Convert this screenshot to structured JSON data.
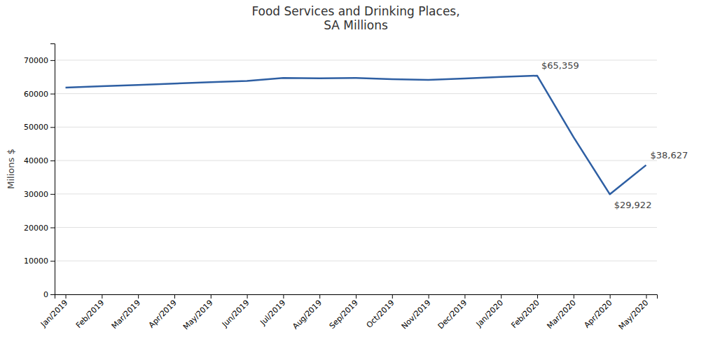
{
  "chart_data": {
    "type": "line",
    "title": "Food Services and Drinking Places,\nSA Millions",
    "ylabel": "Milions $",
    "color": "#2e5fa3",
    "categories": [
      "Jan/2019",
      "Feb/2019",
      "Mar/2019",
      "Apr/2019",
      "May/2019",
      "Jun/2019",
      "Jul/2019",
      "Aug/2019",
      "Sep/2019",
      "Oct/2019",
      "Nov/2019",
      "Dec/2019",
      "Jan/2020",
      "Feb/2020",
      "Mar/2020",
      "Apr/2020",
      "May/2020"
    ],
    "values": [
      61800,
      62200,
      62600,
      63000,
      63400,
      63800,
      64700,
      64600,
      64700,
      64300,
      64100,
      64500,
      65000,
      65359,
      47000,
      29922,
      38627
    ],
    "annotations": [
      {
        "category": "Feb/2020",
        "value": 65359,
        "label": "$65,359"
      },
      {
        "category": "Apr/2020",
        "value": 29922,
        "label": "$29,922"
      },
      {
        "category": "May/2020",
        "value": 38627,
        "label": "$38,627"
      }
    ],
    "ylim": [
      0,
      75000
    ],
    "yticks": [
      0,
      10000,
      20000,
      30000,
      40000,
      50000,
      60000,
      70000
    ],
    "grid": true
  }
}
